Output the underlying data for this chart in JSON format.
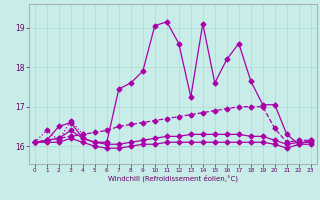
{
  "xlabel": "Windchill (Refroidissement éolien,°C)",
  "bg_color": "#c8ece8",
  "grid_color": "#b0d8d0",
  "line_color": "#aa00aa",
  "x_ticks": [
    0,
    1,
    2,
    3,
    4,
    5,
    6,
    7,
    8,
    9,
    10,
    11,
    12,
    13,
    14,
    15,
    16,
    17,
    18,
    19,
    20,
    21,
    22,
    23
  ],
  "y_ticks": [
    16,
    17,
    18,
    19
  ],
  "xlim": [
    -0.5,
    23.5
  ],
  "ylim": [
    15.55,
    19.6
  ],
  "series": [
    {
      "x": [
        0,
        1,
        2,
        3,
        4,
        5,
        6,
        7,
        8,
        9,
        10,
        11,
        12,
        13,
        14,
        15,
        16,
        17,
        18,
        19,
        20,
        21,
        22,
        23
      ],
      "y": [
        16.1,
        16.15,
        16.5,
        16.6,
        16.2,
        16.1,
        16.1,
        17.45,
        17.6,
        17.9,
        19.05,
        19.15,
        18.6,
        17.25,
        19.1,
        17.6,
        18.2,
        18.6,
        17.65,
        17.05,
        17.05,
        16.3,
        16.05,
        16.15
      ],
      "style": "-",
      "marker": "D",
      "ms": 2.5,
      "lw": 0.9
    },
    {
      "x": [
        0,
        1,
        2,
        3,
        4,
        5,
        6,
        7,
        8,
        9,
        10,
        11,
        12,
        13,
        14,
        15,
        16,
        17,
        18,
        19,
        20,
        21,
        22,
        23
      ],
      "y": [
        16.1,
        16.15,
        16.2,
        16.25,
        16.3,
        16.35,
        16.4,
        16.5,
        16.55,
        16.6,
        16.65,
        16.7,
        16.75,
        16.8,
        16.85,
        16.9,
        16.95,
        17.0,
        17.0,
        17.0,
        16.45,
        16.1,
        16.15,
        16.15
      ],
      "style": "--",
      "marker": "D",
      "ms": 2.5,
      "lw": 0.9
    },
    {
      "x": [
        0,
        1,
        2,
        3,
        4,
        5,
        6,
        7,
        8,
        9,
        10,
        11,
        12,
        13,
        14,
        15,
        16,
        17,
        18,
        19,
        20,
        21,
        22,
        23
      ],
      "y": [
        16.1,
        16.15,
        16.2,
        16.4,
        16.2,
        16.1,
        16.05,
        16.05,
        16.1,
        16.15,
        16.2,
        16.25,
        16.25,
        16.3,
        16.3,
        16.3,
        16.3,
        16.3,
        16.25,
        16.25,
        16.15,
        16.05,
        16.1,
        16.1
      ],
      "style": "-",
      "marker": "D",
      "ms": 2.5,
      "lw": 0.9
    },
    {
      "x": [
        0,
        1,
        2,
        3,
        4,
        5,
        6,
        7,
        8,
        9,
        10,
        11,
        12,
        13,
        14,
        15,
        16,
        17,
        18,
        19,
        20,
        21,
        22,
        23
      ],
      "y": [
        16.1,
        16.1,
        16.1,
        16.2,
        16.1,
        16.0,
        15.95,
        15.95,
        16.0,
        16.05,
        16.05,
        16.1,
        16.1,
        16.1,
        16.1,
        16.1,
        16.1,
        16.1,
        16.1,
        16.1,
        16.05,
        15.95,
        16.05,
        16.05
      ],
      "style": "-",
      "marker": "D",
      "ms": 2.5,
      "lw": 0.9
    },
    {
      "x": [
        0,
        1,
        2,
        3,
        4
      ],
      "y": [
        16.1,
        16.4,
        16.15,
        16.65,
        16.3
      ],
      "style": ":",
      "marker": "D",
      "ms": 2.5,
      "lw": 0.9
    }
  ]
}
